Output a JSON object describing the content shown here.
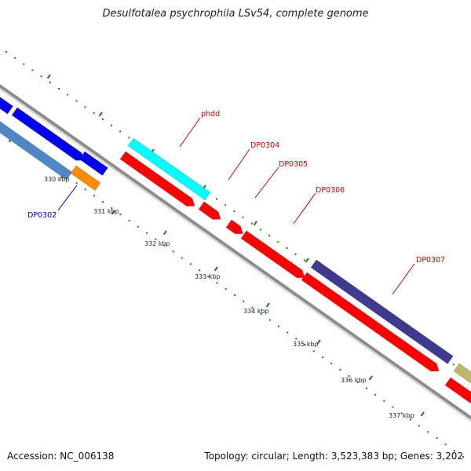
{
  "title": "Desulfotalea psychrophila LSv54, complete genome",
  "footer": {
    "accession": "Accession: NC_006138",
    "summary": "Topology: circular; Length: 3,523,383 bp; Genes: 3,202"
  },
  "colors": {
    "backbone": "#8c8c8c",
    "tick": "#1a7f1a",
    "label_red": "#cc0000",
    "label_blue": "#0000cc",
    "gene_red": "#ff0000",
    "gene_blue": "#0000ee",
    "gene_steelblue": "#4f86c6",
    "gene_orange": "#ff8c00",
    "gene_cyan": "#00ffff",
    "gene_slateblue": "#3d3a8f",
    "gene_khaki": "#bdb76b"
  },
  "scale_labels": [
    "330 kbp",
    "331 kbp",
    "332 kbp",
    "333 kbp",
    "334 kbp",
    "335 kbp",
    "336 kbp",
    "337 kbp"
  ],
  "gene_labels": [
    {
      "text": "phdd",
      "color": "label_red"
    },
    {
      "text": "DP0304",
      "color": "label_red"
    },
    {
      "text": "DP0305",
      "color": "label_red"
    },
    {
      "text": "DP0306",
      "color": "label_red"
    },
    {
      "text": "DP0307",
      "color": "label_red"
    },
    {
      "text": "DP0302",
      "color": "label_blue"
    }
  ]
}
